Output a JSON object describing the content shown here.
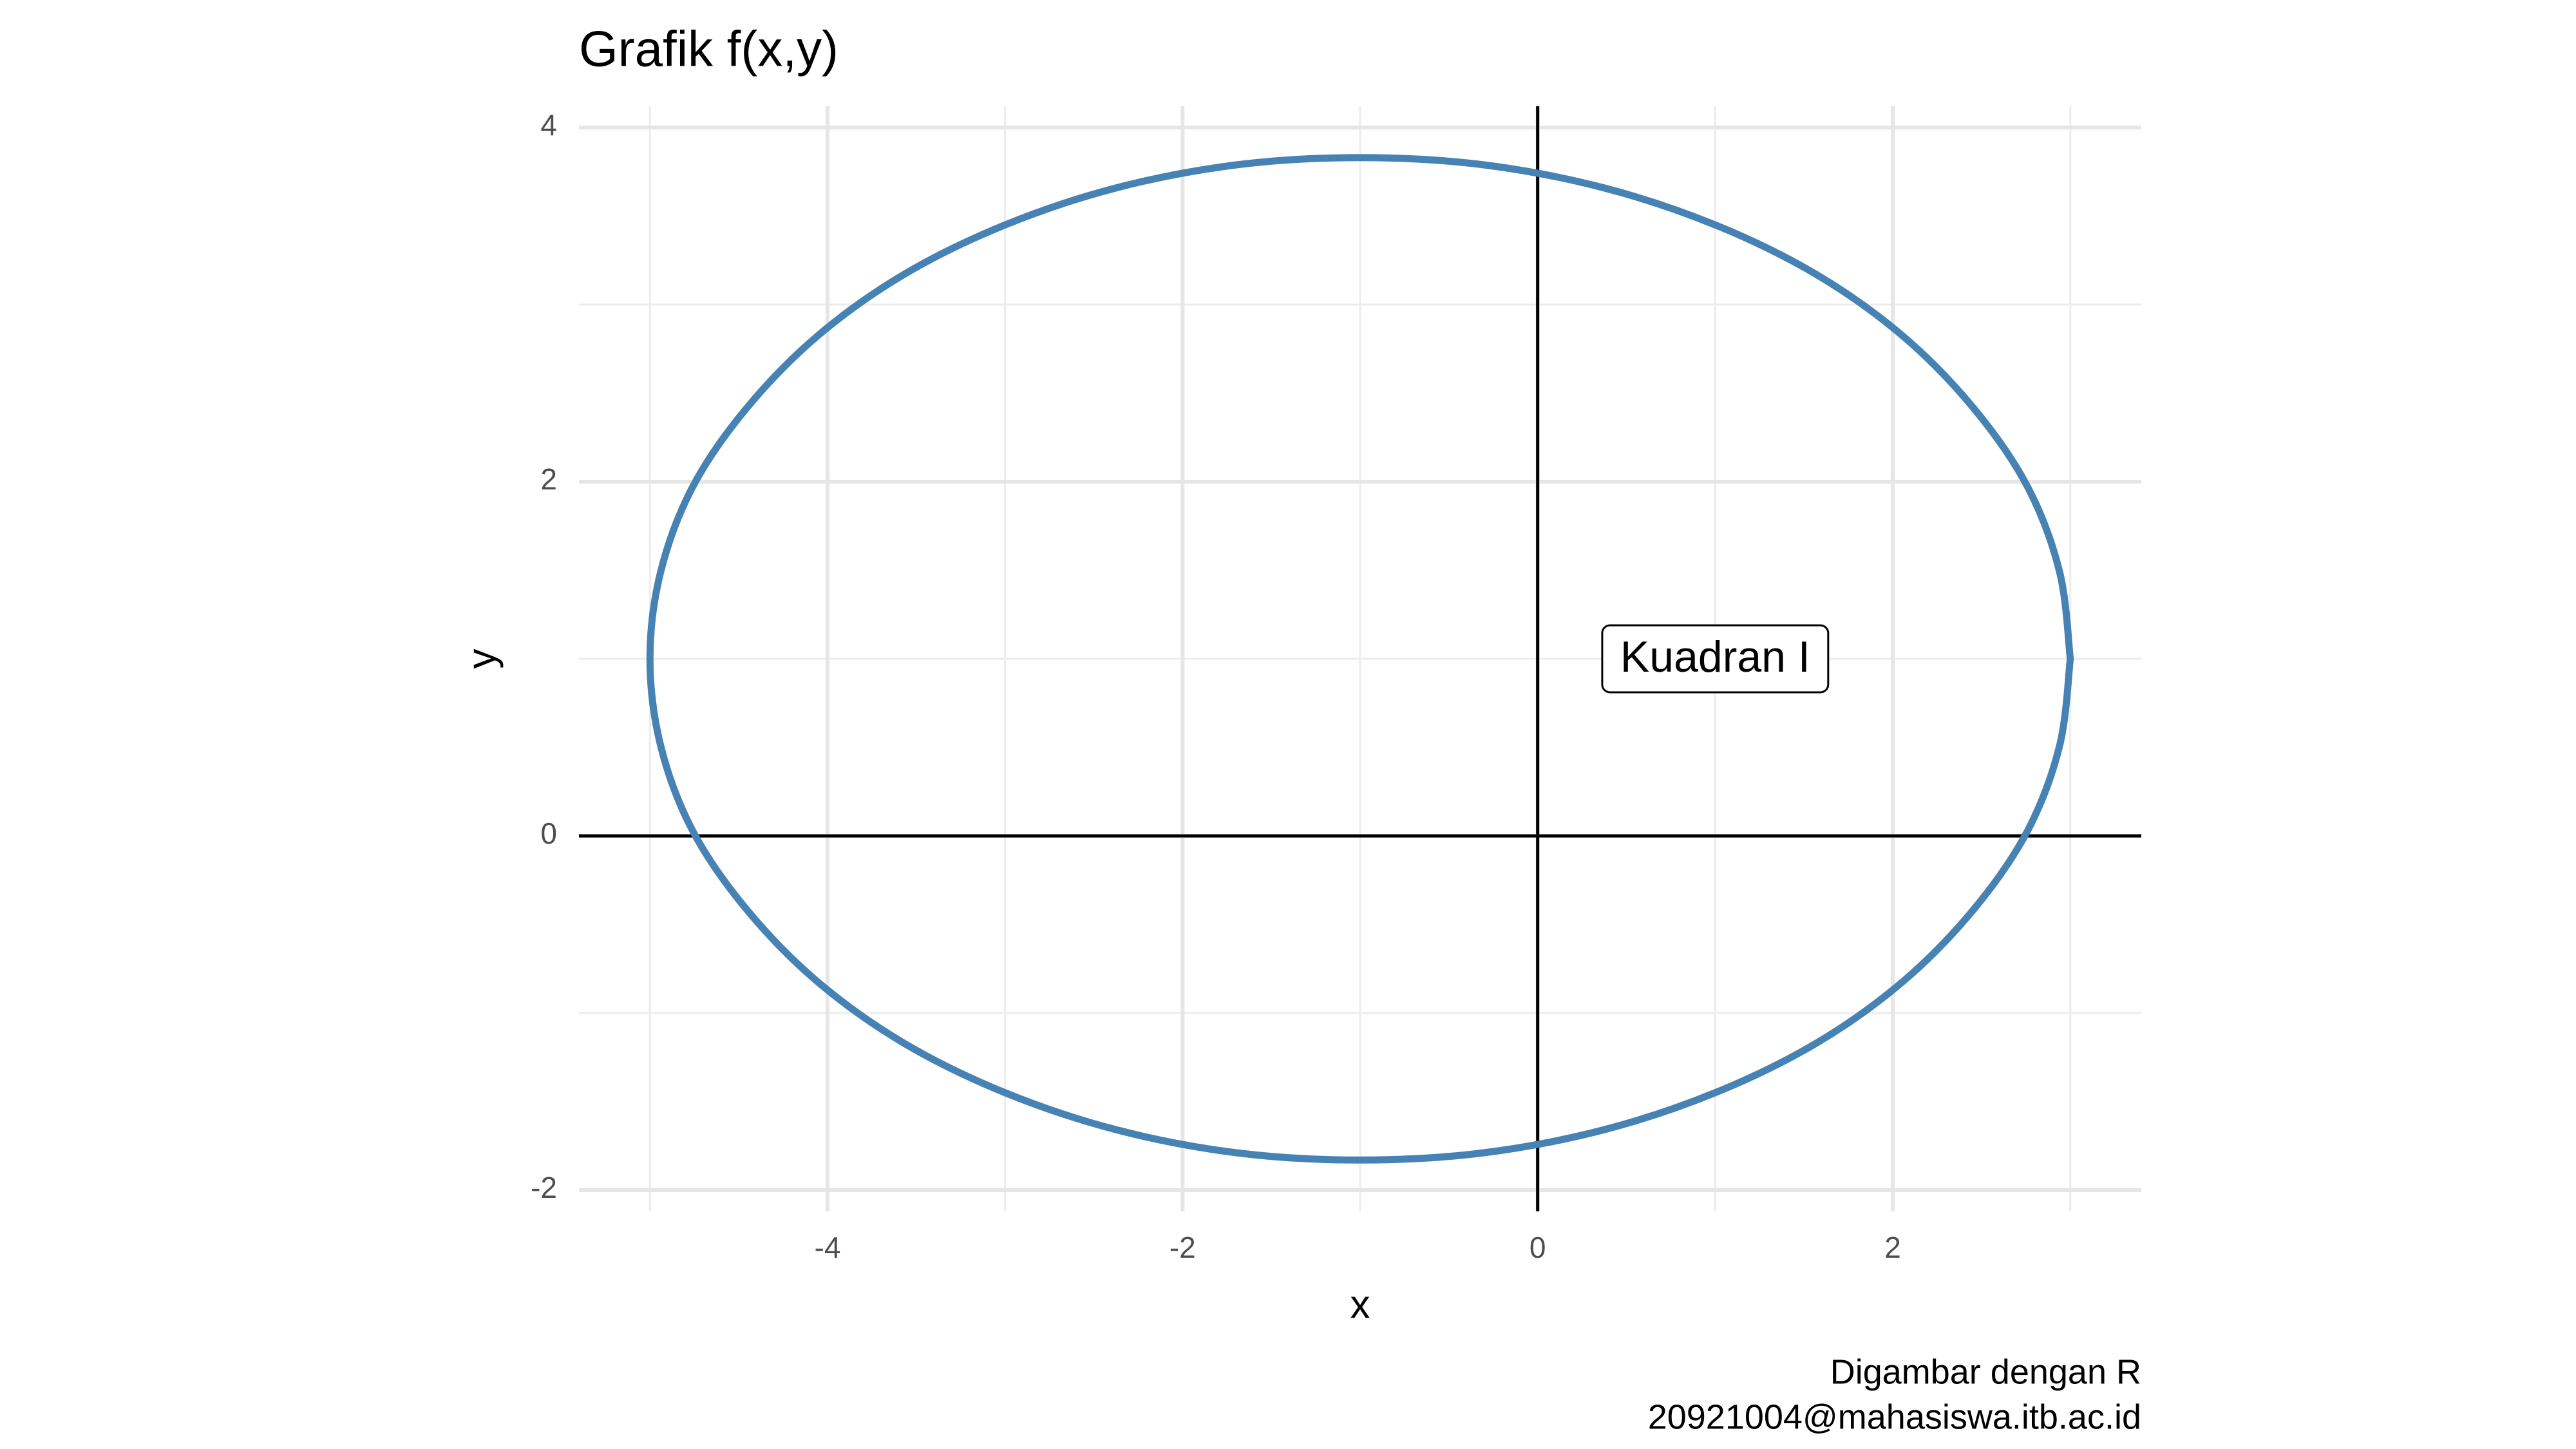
{
  "chart_data": {
    "type": "line",
    "title": "Grafik f(x,y)",
    "x_label": "x",
    "y_label": "y",
    "caption": [
      "Digambar dengan R",
      "20921004@mahasiswa.itb.ac.id"
    ],
    "x": [
      3,
      2.94,
      2.76,
      2.46,
      2.06,
      1.57,
      1,
      0.37,
      -0.31,
      -1,
      -1.69,
      -2.37,
      -3,
      -3.57,
      -4.06,
      -4.46,
      -4.76,
      -4.94,
      -5,
      -4.94,
      -4.76,
      -4.46,
      -4.06,
      -3.57,
      -3,
      -2.37,
      -1.69,
      -1,
      -0.31,
      0.37,
      1,
      1.57,
      2.06,
      2.46,
      2.76,
      2.94,
      3
    ],
    "values": [
      1,
      1.49,
      1.97,
      2.41,
      2.82,
      3.17,
      3.45,
      3.66,
      3.79,
      3.83,
      3.79,
      3.66,
      3.45,
      3.17,
      2.82,
      2.41,
      1.97,
      1.49,
      1,
      0.51,
      0.03,
      -0.41,
      -0.82,
      -1.17,
      -1.45,
      -1.66,
      -1.79,
      -1.83,
      -1.79,
      -1.66,
      -1.45,
      -1.17,
      -0.82,
      -0.41,
      0.03,
      0.51,
      1
    ],
    "color": "#4682b4",
    "xlim": [
      -5.4,
      3.4
    ],
    "ylim": [
      -2.12,
      4.12
    ],
    "xticks": [
      -4,
      -2,
      0,
      2
    ],
    "yticks": [
      -2,
      0,
      2,
      4
    ],
    "minor_xticks": [
      -5,
      -3,
      -1,
      1,
      3
    ],
    "minor_yticks": [
      -1,
      1,
      3
    ],
    "grid": true,
    "hline": 0,
    "vline": 0,
    "annotation": {
      "text": "Kuadran I",
      "x": 1,
      "y": 1
    }
  }
}
